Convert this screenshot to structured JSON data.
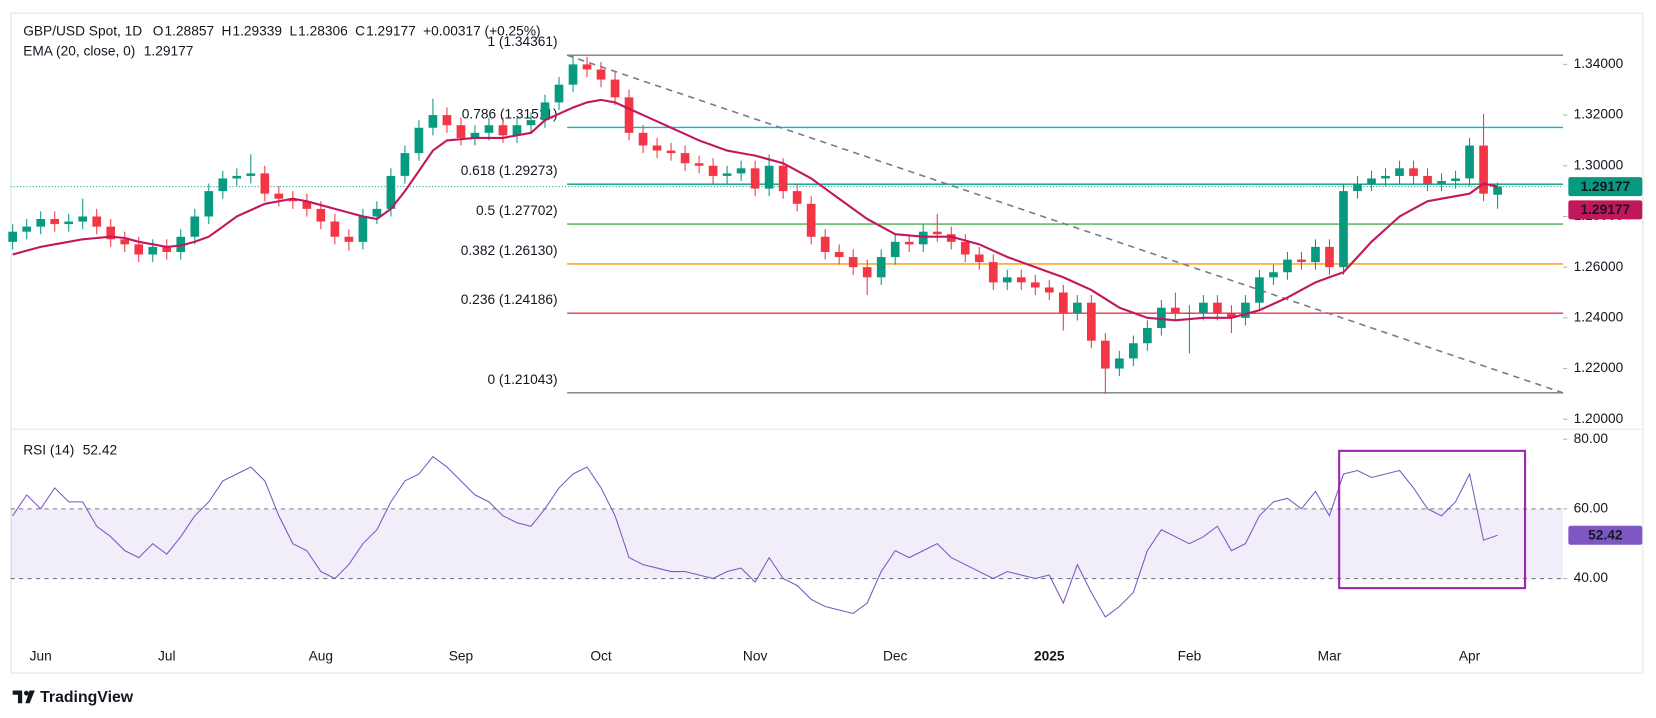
{
  "chart_data": {
    "type": "candlestick",
    "title": "GBP/USD Spot, 1D",
    "ohlc_legend": [
      {
        "label": "O",
        "value": 1.28857
      },
      {
        "label": "H",
        "value": 1.29339
      },
      {
        "label": "L",
        "value": 1.28306
      },
      {
        "label": "C",
        "value": 1.29177
      }
    ],
    "change": "+0.00317 (+0.25%)",
    "categories": [
      null,
      null,
      "Jun",
      null,
      null,
      null,
      null,
      null,
      null,
      null,
      null,
      "Jul",
      null,
      null,
      null,
      null,
      null,
      null,
      null,
      null,
      null,
      null,
      "Aug",
      null,
      null,
      null,
      null,
      null,
      null,
      null,
      null,
      null,
      "Sep",
      null,
      null,
      null,
      null,
      null,
      null,
      null,
      null,
      null,
      "Oct",
      null,
      null,
      null,
      null,
      null,
      null,
      null,
      null,
      null,
      null,
      "Nov",
      null,
      null,
      null,
      null,
      null,
      null,
      null,
      null,
      null,
      "Dec",
      null,
      null,
      null,
      null,
      null,
      null,
      null,
      null,
      null,
      null,
      "2025",
      null,
      null,
      null,
      null,
      null,
      null,
      null,
      null,
      null,
      "Feb",
      null,
      null,
      null,
      null,
      null,
      null,
      null,
      null,
      null,
      "Mar",
      null,
      null,
      null,
      null,
      null,
      null,
      null,
      null,
      null,
      "Apr",
      null,
      null
    ],
    "candles": {
      "up_color": "#089981",
      "down_color": "#f23645",
      "open": [
        1.27,
        1.274,
        1.276,
        1.279,
        1.277,
        1.278,
        1.28,
        1.276,
        1.271,
        1.269,
        1.265,
        1.268,
        1.266,
        1.272,
        1.28,
        1.29,
        1.295,
        1.296,
        1.297,
        1.289,
        1.287,
        1.286,
        1.283,
        1.278,
        1.272,
        1.27,
        1.28,
        1.283,
        1.296,
        1.305,
        1.315,
        1.32,
        1.316,
        1.311,
        1.313,
        1.316,
        1.312,
        1.316,
        1.318,
        1.325,
        1.332,
        1.34,
        1.338,
        1.334,
        1.327,
        1.313,
        1.308,
        1.306,
        1.305,
        1.301,
        1.3,
        1.296,
        1.297,
        1.299,
        1.291,
        1.3,
        1.29,
        1.285,
        1.272,
        1.266,
        1.264,
        1.26,
        1.256,
        1.264,
        1.27,
        1.269,
        1.274,
        1.273,
        1.27,
        1.265,
        1.262,
        1.254,
        1.256,
        1.254,
        1.252,
        1.25,
        1.242,
        1.246,
        1.231,
        1.22,
        1.224,
        1.23,
        1.236,
        1.244,
        1.242,
        1.242,
        1.246,
        1.242,
        1.24,
        1.246,
        1.256,
        1.258,
        1.263,
        1.262,
        1.268,
        1.26,
        1.29,
        1.293,
        1.295,
        1.296,
        1.299,
        1.296,
        1.293,
        1.294,
        1.295,
        1.308,
        1.28857
      ],
      "high": [
        1.277,
        1.279,
        1.282,
        1.282,
        1.281,
        1.287,
        1.283,
        1.279,
        1.274,
        1.272,
        1.271,
        1.271,
        1.275,
        1.283,
        1.293,
        1.298,
        1.299,
        1.3045,
        1.3,
        1.292,
        1.29,
        1.289,
        1.286,
        1.281,
        1.275,
        1.283,
        1.286,
        1.299,
        1.308,
        1.318,
        1.3265,
        1.323,
        1.319,
        1.316,
        1.319,
        1.319,
        1.319,
        1.321,
        1.328,
        1.335,
        1.3435,
        1.343,
        1.341,
        1.337,
        1.33,
        1.316,
        1.311,
        1.309,
        1.308,
        1.304,
        1.303,
        1.3,
        1.302,
        1.302,
        1.3045,
        1.303,
        1.293,
        1.288,
        1.275,
        1.269,
        1.267,
        1.263,
        1.267,
        1.273,
        1.273,
        1.277,
        1.281,
        1.276,
        1.273,
        1.268,
        1.265,
        1.259,
        1.259,
        1.257,
        1.255,
        1.253,
        1.249,
        1.249,
        1.234,
        1.227,
        1.233,
        1.239,
        1.247,
        1.25,
        1.245,
        1.249,
        1.249,
        1.245,
        1.249,
        1.259,
        1.261,
        1.266,
        1.266,
        1.271,
        1.271,
        1.293,
        1.296,
        1.298,
        1.299,
        1.302,
        1.302,
        1.299,
        1.297,
        1.298,
        1.311,
        1.3205,
        1.29339
      ],
      "low": [
        1.267,
        1.271,
        1.273,
        1.274,
        1.274,
        1.275,
        1.273,
        1.268,
        1.266,
        1.262,
        1.262,
        1.263,
        1.263,
        1.269,
        1.277,
        1.287,
        1.292,
        1.293,
        1.286,
        1.284,
        1.283,
        1.28,
        1.275,
        1.269,
        1.2665,
        1.267,
        1.277,
        1.28,
        1.293,
        1.302,
        1.312,
        1.313,
        1.308,
        1.308,
        1.31,
        1.309,
        1.309,
        1.313,
        1.315,
        1.322,
        1.329,
        1.335,
        1.331,
        1.324,
        1.31,
        1.305,
        1.303,
        1.302,
        1.298,
        1.297,
        1.293,
        1.293,
        1.294,
        1.288,
        1.288,
        1.287,
        1.282,
        1.269,
        1.263,
        1.261,
        1.257,
        1.249,
        1.253,
        1.261,
        1.266,
        1.266,
        1.27,
        1.267,
        1.262,
        1.259,
        1.251,
        1.251,
        1.251,
        1.249,
        1.247,
        1.235,
        1.239,
        1.228,
        1.21,
        1.217,
        1.221,
        1.227,
        1.233,
        1.239,
        1.226,
        1.239,
        1.239,
        1.234,
        1.237,
        1.243,
        1.253,
        1.255,
        1.259,
        1.259,
        1.257,
        1.257,
        1.287,
        1.29,
        1.292,
        1.293,
        1.293,
        1.29,
        1.29,
        1.291,
        1.292,
        1.286,
        1.28306
      ],
      "close": [
        1.274,
        1.276,
        1.279,
        1.277,
        1.278,
        1.28,
        1.276,
        1.271,
        1.269,
        1.265,
        1.268,
        1.266,
        1.272,
        1.28,
        1.29,
        1.295,
        1.296,
        1.297,
        1.289,
        1.287,
        1.286,
        1.283,
        1.278,
        1.272,
        1.27,
        1.28,
        1.283,
        1.296,
        1.305,
        1.315,
        1.32,
        1.316,
        1.311,
        1.313,
        1.316,
        1.312,
        1.316,
        1.318,
        1.325,
        1.332,
        1.34,
        1.338,
        1.334,
        1.327,
        1.313,
        1.308,
        1.306,
        1.305,
        1.301,
        1.3,
        1.296,
        1.297,
        1.299,
        1.291,
        1.3,
        1.29,
        1.285,
        1.272,
        1.266,
        1.264,
        1.26,
        1.256,
        1.264,
        1.27,
        1.269,
        1.274,
        1.273,
        1.27,
        1.265,
        1.262,
        1.254,
        1.256,
        1.254,
        1.252,
        1.25,
        1.242,
        1.246,
        1.231,
        1.22,
        1.224,
        1.23,
        1.236,
        1.244,
        1.242,
        1.242,
        1.246,
        1.242,
        1.24,
        1.246,
        1.256,
        1.258,
        1.263,
        1.262,
        1.268,
        1.26,
        1.29,
        1.293,
        1.295,
        1.296,
        1.299,
        1.296,
        1.293,
        1.294,
        1.295,
        1.308,
        1.289,
        1.29177
      ]
    },
    "ema": {
      "name": "EMA (20, close, 0)",
      "value": 1.29177,
      "color": "#c2185b",
      "values": [
        1.265,
        1.2665,
        1.268,
        1.269,
        1.27,
        1.271,
        1.2715,
        1.272,
        1.2715,
        1.27,
        1.269,
        1.268,
        1.2685,
        1.27,
        1.272,
        1.276,
        1.28,
        1.2825,
        1.285,
        1.286,
        1.287,
        1.286,
        1.2845,
        1.283,
        1.2815,
        1.28,
        1.279,
        1.283,
        1.29,
        1.298,
        1.306,
        1.31,
        1.3105,
        1.311,
        1.311,
        1.311,
        1.312,
        1.313,
        1.318,
        1.3205,
        1.323,
        1.325,
        1.326,
        1.325,
        1.3225,
        1.32,
        1.3175,
        1.315,
        1.3125,
        1.31,
        1.308,
        1.306,
        1.305,
        1.304,
        1.3025,
        1.301,
        1.298,
        1.295,
        1.291,
        1.287,
        1.283,
        1.279,
        1.276,
        1.273,
        1.2725,
        1.272,
        1.272,
        1.272,
        1.2705,
        1.269,
        1.2665,
        1.264,
        1.262,
        1.26,
        1.258,
        1.256,
        1.2535,
        1.251,
        1.2475,
        1.244,
        1.242,
        1.24,
        1.2395,
        1.239,
        1.2395,
        1.24,
        1.24,
        1.24,
        1.2415,
        1.243,
        1.2455,
        1.248,
        1.251,
        1.254,
        1.256,
        1.258,
        1.264,
        1.27,
        1.275,
        1.28,
        1.283,
        1.286,
        1.287,
        1.288,
        1.289,
        1.293,
        1.29177
      ]
    },
    "fibonacci": [
      {
        "label": "1 (1.34361)",
        "value": 1.34361,
        "color": "#787b86"
      },
      {
        "label": "0.786 (1.31511)",
        "value": 1.31511,
        "color": "#00bcd4"
      },
      {
        "label": "0.618 (1.29273)",
        "value": 1.29273,
        "color": "#089981"
      },
      {
        "label": "0.5 (1.27702)",
        "value": 1.27702,
        "color": "#4caf50"
      },
      {
        "label": "0.382 (1.26130)",
        "value": 1.2613,
        "color": "#ff9800"
      },
      {
        "label": "0.236 (1.24186)",
        "value": 1.24186,
        "color": "#f23645"
      },
      {
        "label": "0 (1.21043)",
        "value": 1.21043,
        "color": "#787b86"
      }
    ],
    "ylim": [
      1.1967,
      1.3604
    ],
    "yticks": [
      {
        "value": 1.34,
        "label": "1.34000"
      },
      {
        "value": 1.32,
        "label": "1.32000"
      },
      {
        "value": 1.3,
        "label": "1.30000"
      },
      {
        "value": 1.28,
        "label": "1.28000"
      },
      {
        "value": 1.26,
        "label": "1.26000"
      },
      {
        "value": 1.24,
        "label": "1.24000"
      },
      {
        "value": 1.22,
        "label": "1.22000"
      },
      {
        "value": 1.2,
        "label": "1.20000"
      }
    ],
    "rsi": {
      "name": "RSI (14)",
      "value": 52.42,
      "color": "#7e57c2",
      "ylim": [
        21.2,
        82.7
      ],
      "yticks": [
        {
          "value": 80,
          "label": "80.00"
        },
        {
          "value": 60,
          "label": "60.00"
        },
        {
          "value": 40,
          "label": "40.00"
        }
      ],
      "band": [
        40,
        60
      ],
      "values": [
        58,
        64,
        60,
        66,
        62,
        62,
        55,
        52,
        48,
        46,
        50,
        47,
        52,
        58,
        62,
        68,
        70,
        72,
        68,
        58,
        50,
        48,
        42,
        40,
        44,
        50,
        54,
        62,
        68,
        70,
        75,
        72,
        68,
        64,
        62,
        58,
        56,
        55,
        60,
        66,
        70,
        72,
        66,
        58,
        46,
        44,
        43,
        42,
        42,
        41,
        40,
        42,
        43,
        39,
        46,
        40,
        38,
        34,
        32,
        31,
        30,
        33,
        42,
        48,
        46,
        48,
        50,
        46,
        44,
        42,
        40,
        42,
        41,
        40,
        41,
        33,
        44,
        36,
        29,
        32,
        36,
        48,
        54,
        52,
        50,
        52,
        55,
        48,
        50,
        58,
        62,
        63,
        60,
        65,
        58,
        70,
        71,
        69,
        70,
        71,
        66,
        60,
        58,
        62,
        70,
        51,
        52.42
      ]
    },
    "brand": "TradingView"
  }
}
